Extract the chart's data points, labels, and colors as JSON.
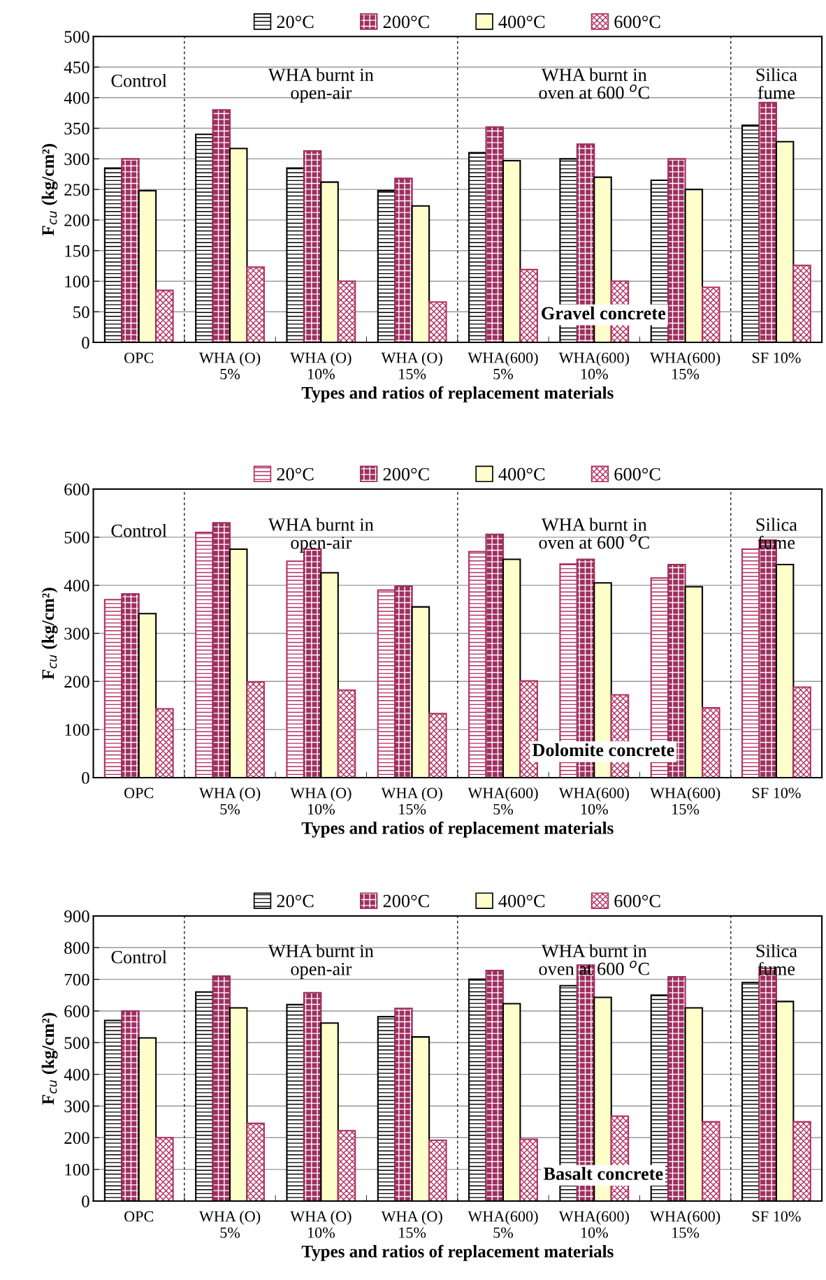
{
  "chart_data": [
    {
      "type": "bar",
      "xlabel": "Types and ratios of replacement materials",
      "ylabel": "F$_{cu}$ (kg/cm²)",
      "categories": [
        "OPC",
        "WHA (O)\n5%",
        "WHA (O)\n10%",
        "WHA (O)\n15%",
        "WHA(600)\n5%",
        "WHA(600)\n10%",
        "WHA(600)\n15%",
        "SF 10%"
      ],
      "series": [
        {
          "name": "20°C",
          "color": "#000000",
          "values": [
            285,
            340,
            285,
            248,
            310,
            300,
            265,
            355
          ]
        },
        {
          "name": "200°C",
          "color": "#9e2f5f",
          "values": [
            300,
            380,
            313,
            268,
            352,
            324,
            300,
            392
          ]
        },
        {
          "name": "400°C",
          "color": "#ffffcc",
          "values": [
            248,
            317,
            262,
            223,
            297,
            270,
            250,
            328
          ]
        },
        {
          "name": "600°C",
          "color": "#b03060",
          "values": [
            85,
            123,
            100,
            66,
            119,
            100,
            90,
            126
          ]
        }
      ],
      "ylim": [
        0,
        500
      ],
      "yticks": [
        0,
        50,
        100,
        150,
        200,
        250,
        300,
        350,
        400,
        450,
        500
      ],
      "grid": "y",
      "legend": "top",
      "annotations": [
        "Control",
        "WHA burnt in\nopen-air",
        "WHA burnt in\noven at 600 $^{o}$C",
        "Silica\nfume",
        "Gravel concrete"
      ]
    },
    {
      "type": "bar",
      "xlabel": "Types and ratios of replacement materials",
      "ylabel": "F$_{cu}$ (kg/cm²)",
      "categories": [
        "OPC",
        "WHA (O)\n5%",
        "WHA (O)\n10%",
        "WHA (O)\n15%",
        "WHA(600)\n5%",
        "WHA(600)\n10%",
        "WHA(600)\n15%",
        "SF 10%"
      ],
      "series": [
        {
          "name": "20°C",
          "color": "#b03060",
          "values": [
            370,
            510,
            450,
            390,
            470,
            444,
            415,
            475
          ]
        },
        {
          "name": "200°C",
          "color": "#9e2f5f",
          "values": [
            382,
            530,
            475,
            398,
            506,
            454,
            443,
            494
          ]
        },
        {
          "name": "400°C",
          "color": "#ffffcc",
          "values": [
            341,
            475,
            426,
            355,
            454,
            405,
            397,
            443
          ]
        },
        {
          "name": "600°C",
          "color": "#b03060",
          "values": [
            143,
            199,
            182,
            133,
            201,
            172,
            145,
            188
          ]
        }
      ],
      "ylim": [
        0,
        600
      ],
      "yticks": [
        0,
        100,
        200,
        300,
        400,
        500,
        600
      ],
      "grid": "y",
      "legend": "top",
      "annotations": [
        "Control",
        "WHA burnt in\nopen-air",
        "WHA burnt in\noven at 600 $^{o}$C",
        "Silica\nfume",
        "Dolomite concrete"
      ]
    },
    {
      "type": "bar",
      "xlabel": "Types and ratios of replacement materials",
      "ylabel": "F$_{cu}$ (kg/cm²)",
      "categories": [
        "OPC",
        "WHA (O)\n5%",
        "WHA (O)\n10%",
        "WHA (O)\n15%",
        "WHA(600)\n5%",
        "WHA(600)\n10%",
        "WHA(600)\n15%",
        "SF 10%"
      ],
      "series": [
        {
          "name": "20°C",
          "color": "#000000",
          "values": [
            570,
            660,
            620,
            582,
            700,
            680,
            650,
            690
          ]
        },
        {
          "name": "200°C",
          "color": "#9e2f5f",
          "values": [
            600,
            710,
            658,
            608,
            728,
            745,
            708,
            735
          ]
        },
        {
          "name": "400°C",
          "color": "#ffffcc",
          "values": [
            515,
            610,
            562,
            518,
            623,
            643,
            610,
            630
          ]
        },
        {
          "name": "600°C",
          "color": "#b03060",
          "values": [
            200,
            245,
            222,
            192,
            195,
            268,
            250,
            250
          ]
        }
      ],
      "ylim": [
        0,
        900
      ],
      "yticks": [
        0,
        100,
        200,
        300,
        400,
        500,
        600,
        700,
        800,
        900
      ],
      "grid": "y",
      "legend": "top",
      "annotations": [
        "Control",
        "WHA burnt in\nopen-air",
        "WHA burnt in\noven at 600 $^{o}$C",
        "Silica\nfume",
        "Basalt concrete"
      ]
    }
  ]
}
